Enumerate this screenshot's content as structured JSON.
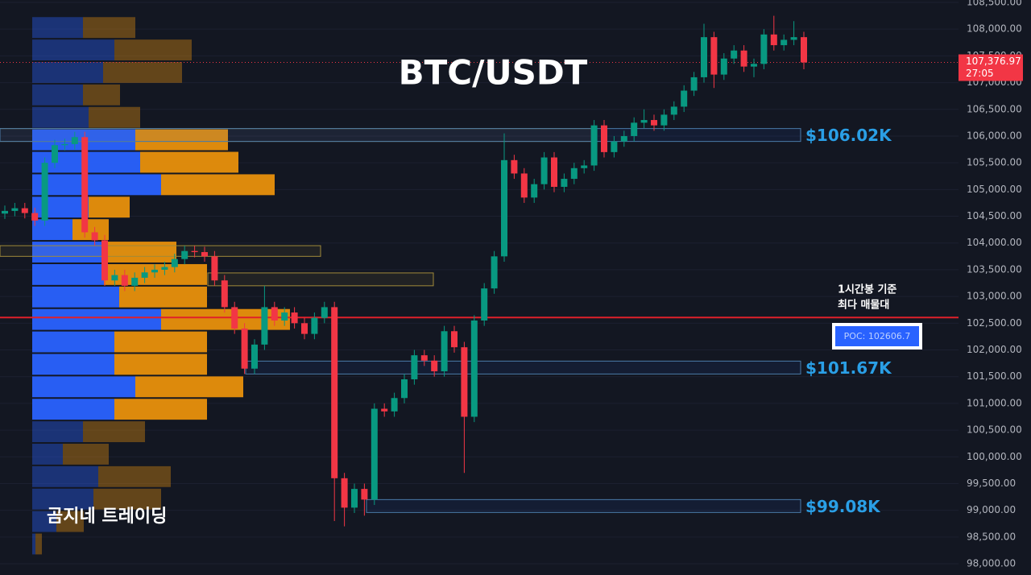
{
  "chart_data": {
    "type": "candlestick",
    "title": "BTC/USDT",
    "watermark": "곰지네 트레이딩",
    "ylim": [
      97790,
      108545
    ],
    "yticks": [
      {
        "value": 98000,
        "label": "98,000.00"
      },
      {
        "value": 98500,
        "label": "98,500.00"
      },
      {
        "value": 99000,
        "label": "99,000.00"
      },
      {
        "value": 99500,
        "label": "99,500.00"
      },
      {
        "value": 100000,
        "label": "100,000.00"
      },
      {
        "value": 100500,
        "label": "100,500.00"
      },
      {
        "value": 101000,
        "label": "101,000.00"
      },
      {
        "value": 101500,
        "label": "101,500.00"
      },
      {
        "value": 102000,
        "label": "102,000.00"
      },
      {
        "value": 102500,
        "label": "102,500.00"
      },
      {
        "value": 103000,
        "label": "103,000.00"
      },
      {
        "value": 103500,
        "label": "103,500.00"
      },
      {
        "value": 104000,
        "label": "104,000.00"
      },
      {
        "value": 104500,
        "label": "104,500.00"
      },
      {
        "value": 105000,
        "label": "105,000.00"
      },
      {
        "value": 105500,
        "label": "105,500.00"
      },
      {
        "value": 106000,
        "label": "106,000.00"
      },
      {
        "value": 106500,
        "label": "106,500.00"
      },
      {
        "value": 107000,
        "label": "107,000.00"
      },
      {
        "value": 107500,
        "label": "107,500.00"
      },
      {
        "value": 108000,
        "label": "108,000.00"
      },
      {
        "value": 108500,
        "label": "108,500.00"
      }
    ],
    "grid": true,
    "up_color": "#089981",
    "down_color": "#f23645",
    "open": [
      104550,
      104600,
      104650,
      104560,
      104420,
      105500,
      105830,
      105850,
      105980,
      104200,
      104050,
      103300,
      103400,
      103200,
      103350,
      103450,
      103500,
      103550,
      103700,
      103850,
      103830,
      103750,
      103300,
      102800,
      102400,
      101650,
      102100,
      102800,
      102550,
      102700,
      102500,
      102300,
      102600,
      102800,
      99600,
      99050,
      99400,
      99200,
      100900,
      100850,
      101100,
      101450,
      101900,
      101800,
      101600,
      102350,
      102050,
      100750,
      102550,
      103150,
      103750,
      105550,
      105300,
      104850,
      105100,
      105600,
      105050,
      105200,
      105400,
      105450,
      106200,
      105700,
      105900,
      106000,
      106250,
      106300,
      106200,
      106400,
      106550,
      106850,
      107100,
      107850,
      107150,
      107450,
      107600,
      107300,
      107350,
      107900,
      107700,
      107800,
      107850
    ],
    "high": [
      104700,
      104750,
      104750,
      104660,
      105600,
      105930,
      105950,
      106080,
      106080,
      104300,
      104150,
      103500,
      103500,
      103450,
      103550,
      103600,
      103650,
      103800,
      103950,
      103950,
      103930,
      103850,
      103400,
      102900,
      102500,
      102200,
      103200,
      102900,
      102800,
      102800,
      102600,
      102700,
      102900,
      102900,
      99700,
      99500,
      99500,
      101000,
      101000,
      101200,
      101550,
      102000,
      102000,
      101900,
      102450,
      102450,
      102150,
      102650,
      103250,
      103850,
      106050,
      105650,
      105400,
      105200,
      105700,
      105700,
      105300,
      105500,
      105550,
      106300,
      106300,
      106000,
      106100,
      106350,
      106500,
      106400,
      106500,
      106650,
      106950,
      107200,
      108100,
      107950,
      107550,
      107700,
      107700,
      107450,
      108000,
      108250,
      107900,
      108150,
      107950
    ],
    "low": [
      104450,
      104500,
      104460,
      104320,
      104320,
      105400,
      105730,
      105750,
      104100,
      103950,
      103200,
      103200,
      103100,
      103100,
      103250,
      103350,
      103400,
      103450,
      103600,
      103730,
      103650,
      103200,
      102700,
      102300,
      101550,
      101550,
      102000,
      102450,
      102450,
      102400,
      102200,
      102200,
      102500,
      98800,
      98700,
      98950,
      98900,
      99100,
      100750,
      100750,
      101000,
      101350,
      101700,
      101500,
      101500,
      101950,
      99700,
      100650,
      102450,
      103050,
      103650,
      105200,
      104750,
      104750,
      105000,
      104950,
      104950,
      105100,
      105300,
      105350,
      105600,
      105600,
      105800,
      105900,
      106150,
      106100,
      106100,
      106300,
      106450,
      106750,
      107000,
      106900,
      107050,
      107350,
      107200,
      107100,
      107250,
      107600,
      107600,
      107700,
      107250
    ],
    "close": [
      104600,
      104650,
      104560,
      104420,
      105500,
      105830,
      105850,
      105980,
      104200,
      104050,
      103300,
      103400,
      103200,
      103350,
      103450,
      103500,
      103550,
      103700,
      103850,
      103830,
      103750,
      103300,
      102800,
      102400,
      101650,
      102100,
      102800,
      102550,
      102700,
      102500,
      102300,
      102600,
      102800,
      99600,
      99050,
      99400,
      99200,
      100900,
      100850,
      101100,
      101450,
      101900,
      101800,
      101600,
      102350,
      102050,
      100750,
      102550,
      103150,
      103750,
      105550,
      105300,
      104850,
      105100,
      105600,
      105050,
      105200,
      105400,
      105450,
      106200,
      105700,
      105900,
      106000,
      106250,
      106300,
      106200,
      106400,
      106550,
      106850,
      107100,
      107850,
      107150,
      107450,
      107600,
      107300,
      107350,
      107900,
      107700,
      107800,
      107850,
      107376.97
    ],
    "volume_profile": {
      "bins": [
        108240,
        107820,
        107400,
        106980,
        106560,
        106140,
        105720,
        105300,
        104880,
        104460,
        104040,
        103620,
        103200,
        102780,
        102360,
        101940,
        101520,
        101100,
        100680,
        100260,
        99840,
        99420,
        99000,
        98580,
        98160
      ],
      "buy": [
        63,
        102,
        88,
        63,
        70,
        128,
        134,
        160,
        70,
        50,
        89,
        89,
        108,
        160,
        102,
        102,
        128,
        102,
        63,
        38,
        82,
        76,
        30,
        4
      ],
      "sell": [
        65,
        96,
        98,
        46,
        64,
        115,
        122,
        141,
        51,
        45,
        90,
        128,
        109,
        160,
        115,
        115,
        134,
        115,
        77,
        57,
        90,
        84,
        34,
        8
      ],
      "buy_color": "#2962ff",
      "sell_color": "#e8900c",
      "value_area": [
        100680,
        106140
      ]
    },
    "zones": [
      {
        "low": 103750,
        "high": 103950
      },
      {
        "low": 103200,
        "high": 103440
      }
    ],
    "levels": [
      {
        "value": 106020,
        "label": "$106.02K"
      },
      {
        "value": 101670,
        "label": "$101.67K"
      },
      {
        "value": 99080,
        "label": "$99.08K"
      }
    ],
    "poc": {
      "value": 102606.7,
      "label": "POC: 102606.7"
    },
    "annotation": [
      "1시간봉 기준",
      "최다 매물대"
    ],
    "price_label": {
      "value": 107376.97,
      "label": "107,376.97"
    },
    "countdown": "27:05"
  }
}
